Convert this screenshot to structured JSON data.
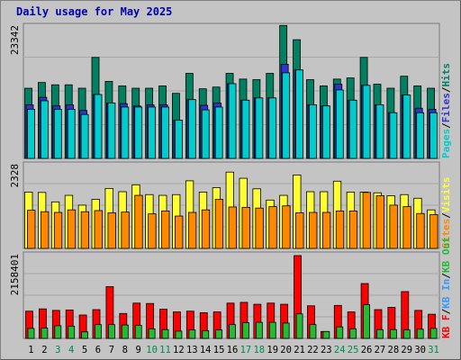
{
  "title": "Daily usage for May 2025",
  "colors": {
    "background": "#c4c4c4",
    "panel": "#c4c4c4",
    "grid": "#a8a8a8",
    "pages": "#00cccc",
    "files": "#3333cc",
    "hits": "#008060",
    "visits": "#ffff33",
    "sites": "#ff8800",
    "kb_f": "#ff0000",
    "kb_in": "#3399ff",
    "kb_out": "#22bb33",
    "title": "#0000b0"
  },
  "chart_data": [
    {
      "type": "bar",
      "name": "hits_files_pages",
      "y_max_label": "23342",
      "ylim": [
        0,
        23342
      ],
      "categories": [
        "1",
        "2",
        "3",
        "4",
        "5",
        "6",
        "7",
        "8",
        "9",
        "10",
        "11",
        "12",
        "13",
        "14",
        "15",
        "16",
        "17",
        "18",
        "19",
        "20",
        "21",
        "22",
        "23",
        "24",
        "25",
        "26",
        "27",
        "28",
        "29",
        "30",
        "31"
      ],
      "series": [
        {
          "name": "Hits",
          "values": [
            12300,
            13300,
            12900,
            12900,
            12300,
            17700,
            13500,
            12700,
            12300,
            12300,
            12700,
            11400,
            14900,
            12200,
            12500,
            14900,
            13900,
            13800,
            14900,
            23300,
            20800,
            13800,
            12700,
            13900,
            14100,
            17700,
            13000,
            12300,
            14400,
            12700,
            12300
          ]
        },
        {
          "name": "Files",
          "values": [
            9400,
            10700,
            9200,
            9400,
            8400,
            11200,
            9700,
            9600,
            9200,
            9400,
            9400,
            6700,
            10300,
            9300,
            9700,
            13100,
            10200,
            10600,
            10600,
            16500,
            15500,
            9400,
            9200,
            13000,
            10200,
            12800,
            9400,
            8000,
            11100,
            8800,
            8600
          ]
        },
        {
          "name": "Pages",
          "values": [
            8600,
            10100,
            8600,
            8600,
            7700,
            11200,
            9700,
            9000,
            9000,
            9000,
            9000,
            6700,
            10300,
            8500,
            9000,
            13100,
            10200,
            10600,
            10600,
            15000,
            15500,
            9400,
            9200,
            12000,
            10200,
            12800,
            9400,
            8000,
            11100,
            8000,
            8000
          ]
        }
      ],
      "legend": [
        "Pages",
        "Files",
        "Hits"
      ]
    },
    {
      "type": "bar",
      "name": "visits_sites",
      "y_max_label": "2328",
      "ylim": [
        0,
        2328
      ],
      "series": [
        {
          "name": "Visits",
          "values": [
            1550,
            1540,
            1280,
            1460,
            1190,
            1350,
            1650,
            1560,
            1750,
            1480,
            1460,
            1480,
            1860,
            1550,
            1670,
            2100,
            1930,
            1640,
            1330,
            1460,
            2020,
            1560,
            1560,
            1850,
            1550,
            1550,
            1530,
            1450,
            1480,
            1380,
            1060
          ]
        },
        {
          "name": "Sites",
          "values": [
            1050,
            1010,
            990,
            1060,
            1010,
            1040,
            980,
            1000,
            1460,
            950,
            1030,
            890,
            990,
            1060,
            1350,
            1140,
            1130,
            1110,
            1150,
            1170,
            980,
            990,
            990,
            1030,
            1030,
            1540,
            1450,
            1190,
            1150,
            960,
            930
          ]
        }
      ],
      "legend": [
        "Sites",
        "Visits"
      ]
    },
    {
      "type": "bar",
      "name": "kbytes",
      "y_max_label": "2158401",
      "ylim": [
        0,
        2158401
      ],
      "series": [
        {
          "name": "KB F",
          "values": [
            710000,
            770000,
            730000,
            740000,
            610000,
            750000,
            1350000,
            650000,
            920000,
            910000,
            760000,
            690000,
            710000,
            670000,
            690000,
            920000,
            940000,
            890000,
            920000,
            890000,
            2158401,
            850000,
            180000,
            860000,
            690000,
            1430000,
            750000,
            810000,
            1220000,
            730000,
            630000
          ]
        },
        {
          "name": "KB In",
          "values": [
            0,
            0,
            0,
            0,
            0,
            0,
            0,
            0,
            0,
            0,
            0,
            0,
            0,
            0,
            0,
            0,
            0,
            0,
            0,
            0,
            0,
            0,
            0,
            0,
            0,
            0,
            0,
            0,
            0,
            0,
            0
          ]
        },
        {
          "name": "KB Out",
          "values": [
            260000,
            270000,
            330000,
            320000,
            170000,
            360000,
            360000,
            350000,
            340000,
            250000,
            230000,
            190000,
            220000,
            200000,
            220000,
            360000,
            410000,
            420000,
            420000,
            400000,
            640000,
            360000,
            180000,
            300000,
            250000,
            880000,
            230000,
            230000,
            220000,
            240000,
            260000
          ]
        }
      ],
      "legend": [
        "KB F",
        "KB In",
        "KB Out"
      ]
    }
  ],
  "x_labels": [
    "1",
    "2",
    "3",
    "4",
    "5",
    "6",
    "7",
    "8",
    "9",
    "10",
    "11",
    "12",
    "13",
    "14",
    "15",
    "16",
    "17",
    "18",
    "19",
    "20",
    "21",
    "22",
    "23",
    "24",
    "25",
    "26",
    "27",
    "28",
    "29",
    "30",
    "31"
  ],
  "weekend_days": [
    "3",
    "4",
    "10",
    "11",
    "17",
    "18",
    "24",
    "25",
    "31"
  ],
  "weekend_label_color": "#00884a",
  "weekday_label_color": "#000000",
  "legend_top": [
    {
      "text": "Pages",
      "color": "#00cccc"
    },
    {
      "text": "/",
      "color": "#000000"
    },
    {
      "text": "Files",
      "color": "#3333cc"
    },
    {
      "text": "/",
      "color": "#000000"
    },
    {
      "text": "Hits",
      "color": "#008060"
    }
  ],
  "legend_mid": [
    {
      "text": "Sites",
      "color": "#ff8800"
    },
    {
      "text": "/",
      "color": "#000000"
    },
    {
      "text": "Visits",
      "color": "#ffff33"
    }
  ],
  "legend_bottom": [
    {
      "text": "KB F",
      "color": "#ff0000"
    },
    {
      "text": "/",
      "color": "#000000"
    },
    {
      "text": "KB In",
      "color": "#3399ff"
    },
    {
      "text": "/",
      "color": "#000000"
    },
    {
      "text": "KB Out",
      "color": "#22bb33"
    }
  ]
}
